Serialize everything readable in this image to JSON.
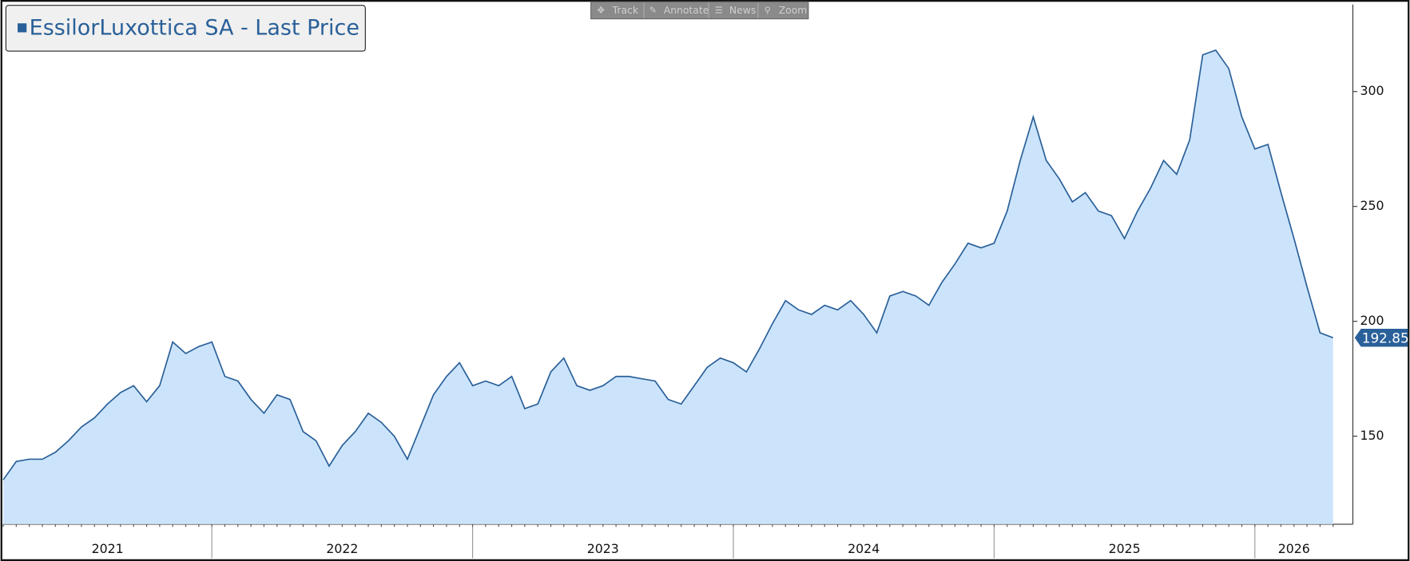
{
  "toolbar": [
    "Track",
    "Annotate",
    "News",
    "Zoom"
  ],
  "chart_data": {
    "type": "area",
    "series_name": "EssilorLuxottica SA - Last Price",
    "line_color": "#2a6099",
    "fill_color": "#cce4fb",
    "categories": [
      "2021",
      null,
      null,
      null,
      null,
      null,
      null,
      null,
      null,
      null,
      null,
      null,
      null,
      null,
      null,
      null,
      "2022",
      null,
      null,
      null,
      null,
      null,
      null,
      null,
      null,
      null,
      null,
      null,
      null,
      null,
      null,
      null,
      null,
      null,
      null,
      null,
      "2023",
      null,
      null,
      null,
      null,
      null,
      null,
      null,
      null,
      null,
      null,
      null,
      null,
      null,
      null,
      null,
      null,
      null,
      null,
      null,
      "2024",
      null,
      null,
      null,
      null,
      null,
      null,
      null,
      null,
      null,
      null,
      null,
      null,
      null,
      null,
      null,
      null,
      null,
      null,
      null,
      "2025",
      null,
      null,
      null,
      null,
      null,
      null,
      null,
      null,
      null,
      null,
      null,
      null,
      null,
      null,
      null,
      null,
      null,
      null,
      null,
      "2026",
      null,
      null,
      null,
      null,
      null,
      null
    ],
    "values": [
      131,
      139,
      140,
      140,
      143,
      148,
      154,
      158,
      164,
      169,
      172,
      165,
      172,
      191,
      186,
      189,
      191,
      176,
      174,
      166,
      160,
      168,
      166,
      152,
      148,
      137,
      146,
      152,
      160,
      156,
      150,
      140,
      154,
      168,
      176,
      182,
      172,
      174,
      172,
      176,
      162,
      164,
      178,
      184,
      172,
      170,
      172,
      176,
      176,
      175,
      174,
      166,
      164,
      172,
      180,
      184,
      182,
      178,
      188,
      199,
      209,
      205,
      203,
      207,
      205,
      209,
      203,
      195,
      211,
      213,
      211,
      207,
      217,
      225,
      234,
      232,
      234,
      248,
      270,
      289,
      270,
      262,
      252,
      256,
      248,
      246,
      236,
      248,
      258,
      270,
      264,
      279,
      316,
      318,
      310,
      289,
      275,
      277,
      256,
      236,
      215,
      195,
      192.85
    ],
    "ylim": [
      111.7,
      337.9
    ],
    "yticks": [
      150,
      200,
      250,
      300
    ]
  }
}
